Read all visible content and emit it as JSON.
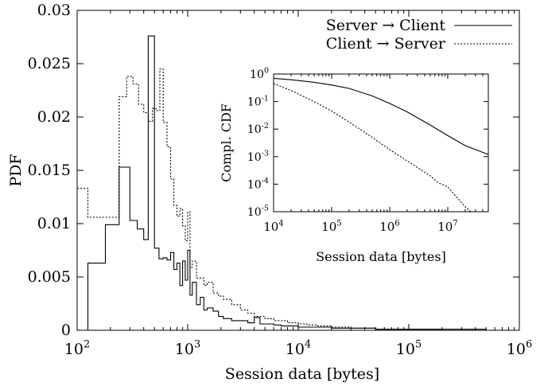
{
  "chart_data": [
    {
      "type": "line",
      "title": "",
      "xlabel": "Session data [bytes]",
      "ylabel": "PDF",
      "xscale": "log",
      "xlim": [
        100,
        1000000
      ],
      "ylim": [
        0,
        0.03
      ],
      "x_ticks": [
        100,
        1000,
        10000,
        100000,
        1000000
      ],
      "x_tick_labels": [
        {
          "base": "10",
          "exp": "2"
        },
        {
          "base": "10",
          "exp": "3"
        },
        {
          "base": "10",
          "exp": "4"
        },
        {
          "base": "10",
          "exp": "5"
        },
        {
          "base": "10",
          "exp": "6"
        }
      ],
      "y_ticks": [
        0,
        0.005,
        0.01,
        0.015,
        0.02,
        0.025,
        0.03
      ],
      "y_tick_labels": [
        "0",
        "0.005",
        "0.01",
        "0.015",
        "0.02",
        "0.025",
        "0.03"
      ],
      "grid": false,
      "legend_position": "top-right",
      "series": [
        {
          "name": "Server → Client",
          "style": "solid",
          "color": "#000000",
          "x": [
            100,
            125,
            180,
            240,
            300,
            350,
            400,
            440,
            500,
            550,
            600,
            650,
            700,
            750,
            800,
            850,
            900,
            950,
            1000,
            1050,
            1100,
            1200,
            1300,
            1400,
            1500,
            1700,
            1900,
            2100,
            2500,
            3000,
            3500,
            4000,
            4500,
            5000,
            6000,
            7000,
            8000,
            10000,
            12000,
            15000,
            20000,
            30000,
            50000,
            80000,
            100000,
            200000,
            500000
          ],
          "y": [
            0.0,
            0.0063,
            0.0099,
            0.0153,
            0.0103,
            0.0095,
            0.0085,
            0.0276,
            0.0077,
            0.0067,
            0.0068,
            0.0066,
            0.0073,
            0.0057,
            0.0063,
            0.0042,
            0.0065,
            0.0047,
            0.0075,
            0.0033,
            0.0045,
            0.0024,
            0.0031,
            0.0019,
            0.0021,
            0.0018,
            0.0013,
            0.0011,
            0.0009,
            0.0009,
            0.0007,
            0.0012,
            0.0006,
            0.0006,
            0.0005,
            0.0004,
            0.0004,
            0.0003,
            0.0003,
            0.0003,
            0.0002,
            0.0002,
            0.0001,
            0.0001,
            0.0001,
            0.0001,
            0.0
          ]
        },
        {
          "name": "Client → Server",
          "style": "dotted",
          "color": "#000000",
          "x": [
            100,
            125,
            180,
            240,
            280,
            320,
            360,
            400,
            440,
            480,
            520,
            560,
            600,
            650,
            700,
            750,
            800,
            850,
            900,
            950,
            1000,
            1050,
            1100,
            1200,
            1300,
            1400,
            1500,
            1700,
            1900,
            2100,
            2500,
            3000,
            3500,
            4000,
            5000,
            6000,
            8000,
            10000,
            12000,
            15000,
            20000,
            30000,
            50000,
            100000,
            200000
          ],
          "y": [
            0.0133,
            0.0106,
            0.0106,
            0.0219,
            0.0238,
            0.0231,
            0.0212,
            0.0204,
            0.0196,
            0.0208,
            0.0206,
            0.0245,
            0.0195,
            0.0172,
            0.0142,
            0.0117,
            0.0107,
            0.0114,
            0.0098,
            0.0084,
            0.0111,
            0.0059,
            0.0065,
            0.0049,
            0.0049,
            0.0042,
            0.0045,
            0.0035,
            0.0032,
            0.0029,
            0.0024,
            0.0019,
            0.0016,
            0.0013,
            0.0011,
            0.0009,
            0.0007,
            0.0006,
            0.0005,
            0.0004,
            0.0003,
            0.0002,
            0.0001,
            0.0001,
            0.0
          ]
        }
      ]
    },
    {
      "type": "line",
      "title": "",
      "xlabel": "Session data [bytes]",
      "ylabel": "Compl. CDF",
      "xscale": "log",
      "yscale": "log",
      "xlim": [
        10000,
        50000000
      ],
      "ylim": [
        1e-05,
        1
      ],
      "x_ticks": [
        10000,
        100000,
        1000000,
        10000000
      ],
      "x_tick_labels": [
        {
          "base": "10",
          "exp": "4"
        },
        {
          "base": "10",
          "exp": "5"
        },
        {
          "base": "10",
          "exp": "6"
        },
        {
          "base": "10",
          "exp": "7"
        }
      ],
      "y_ticks": [
        1e-05,
        0.0001,
        0.001,
        0.01,
        0.1,
        1
      ],
      "y_tick_labels": [
        {
          "base": "10",
          "exp": "-5"
        },
        {
          "base": "10",
          "exp": "-4"
        },
        {
          "base": "10",
          "exp": "-3"
        },
        {
          "base": "10",
          "exp": "-2"
        },
        {
          "base": "10",
          "exp": "-1"
        },
        {
          "base": "10",
          "exp": "0"
        }
      ],
      "grid": false,
      "series": [
        {
          "name": "Server → Client",
          "style": "solid",
          "color": "#000000",
          "x": [
            10000,
            20000,
            50000,
            100000,
            200000,
            500000,
            1000000,
            2000000,
            5000000,
            10000000,
            20000000,
            50000000
          ],
          "y": [
            0.7,
            0.62,
            0.5,
            0.4,
            0.3,
            0.16,
            0.085,
            0.042,
            0.014,
            0.0058,
            0.0025,
            0.0012
          ]
        },
        {
          "name": "Client → Server",
          "style": "dotted",
          "color": "#000000",
          "x": [
            10000,
            20000,
            50000,
            100000,
            200000,
            500000,
            1000000,
            2000000,
            5000000,
            7000000,
            10000000,
            15000000,
            20000000,
            25000000
          ],
          "y": [
            0.45,
            0.25,
            0.1,
            0.045,
            0.018,
            0.005,
            0.0018,
            0.0007,
            0.0002,
            0.00011,
            8e-05,
            3e-05,
            1.5e-05,
            1e-05
          ]
        }
      ]
    }
  ]
}
